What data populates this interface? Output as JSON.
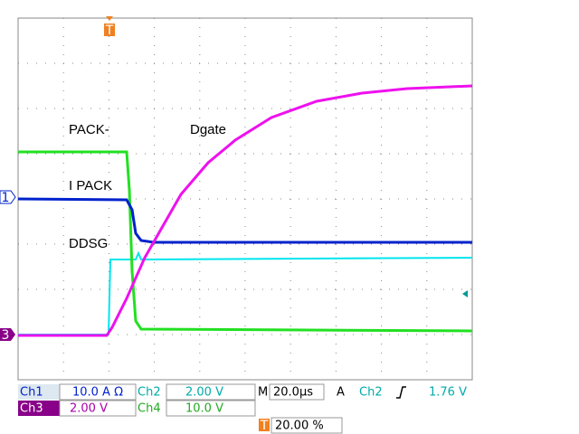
{
  "trace_labels": {
    "pack": "PACK-",
    "dgate": "Dgate",
    "ipack": "I PACK",
    "ddsg": "DDSG"
  },
  "markers": {
    "ch1": "1",
    "ch3": "3",
    "trigger": "T"
  },
  "status": {
    "row1": {
      "ch1": "Ch1",
      "ch1_scale": "10.0 A Ω",
      "ch2": "Ch2",
      "ch2_scale": "2.00 V",
      "timebase_label": "M",
      "timebase": "20.0µs",
      "trigger_label": "A",
      "trigger_source": "Ch2",
      "trigger_level": "1.76 V"
    },
    "row2": {
      "ch3": "Ch3",
      "ch3_scale": "2.00 V",
      "ch4": "Ch4",
      "ch4_scale": "10.0 V"
    },
    "row3": {
      "trigger_icon": "T",
      "trigger_position": "20.00 %"
    }
  }
}
